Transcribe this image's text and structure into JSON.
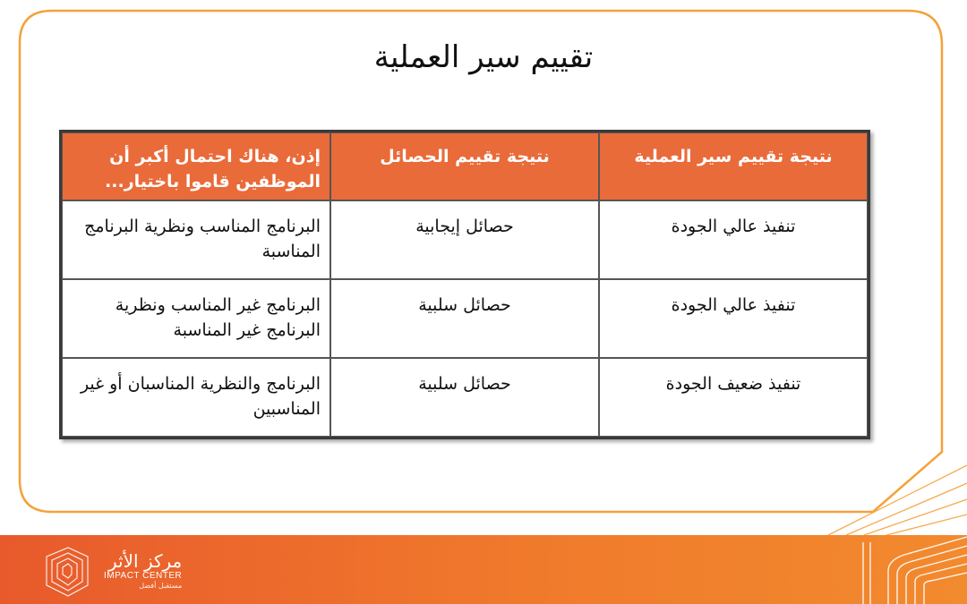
{
  "title": "تقييم سير العملية",
  "table": {
    "headers": [
      "نتيجة تقييم سير العملية",
      "نتيجة تقييم الحصائل",
      "إذن، هناك احتمال أكبر أن الموظفين قاموا باختيار..."
    ],
    "rows": [
      [
        "تنفيذ عالي الجودة",
        "حصائل إيجابية",
        "البرنامج المناسب ونظرية البرنامج المناسبة"
      ],
      [
        "تنفيذ عالي الجودة",
        "حصائل سلبية",
        "البرنامج غير المناسب ونظرية البرنامج غير المناسبة"
      ],
      [
        "تنفيذ ضعيف الجودة",
        "حصائل سلبية",
        "البرنامج والنظرية المناسبان أو غير المناسبين"
      ]
    ]
  },
  "footer": {
    "logo_arabic": "مركز الأثر",
    "logo_english": "IMPACT CENTER",
    "logo_tagline": "مستقبل أفضل"
  },
  "colors": {
    "frame_border": "#f4a23a",
    "header_fill": "#e96b3a",
    "footer_start": "#e85a2c",
    "footer_end": "#f28a2e"
  }
}
